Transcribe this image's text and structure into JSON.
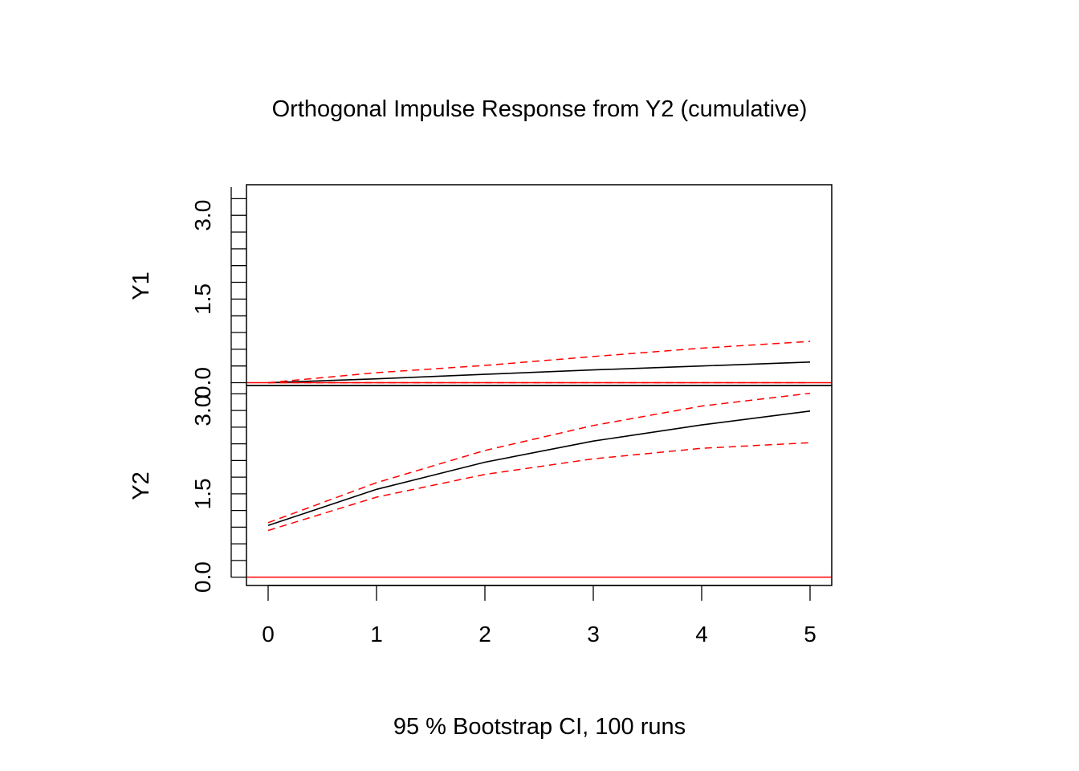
{
  "chart_data": {
    "type": "line",
    "title": "Orthogonal Impulse Response from Y2 (cumulative)",
    "xlabel": "95 % Bootstrap CI,  100 runs",
    "x": [
      0,
      1,
      2,
      3,
      4,
      5
    ],
    "xlim": [
      -0.2,
      5.2
    ],
    "x_tick_labels": [
      "0",
      "1",
      "2",
      "3",
      "4",
      "5"
    ],
    "colors": {
      "response": "#000000",
      "ci": "#ff0000",
      "zero_line": "#ff0000",
      "axes": "#000000"
    },
    "panels": [
      {
        "ylabel": "Y1",
        "ylim": [
          -0.05,
          3.55
        ],
        "y_tick_labels": [
          "0.0",
          "1.5",
          "3.0"
        ],
        "y_tick_values": [
          0.0,
          1.5,
          3.0
        ],
        "series": [
          {
            "role": "response",
            "values": [
              0.0,
              0.07,
              0.15,
              0.23,
              0.3,
              0.37
            ]
          },
          {
            "role": "ci_upper",
            "values": [
              0.0,
              0.18,
              0.31,
              0.47,
              0.62,
              0.74
            ]
          },
          {
            "role": "ci_lower",
            "values": [
              0.0,
              0.0,
              0.0,
              0.0,
              0.0,
              0.0
            ]
          }
        ]
      },
      {
        "ylabel": "Y2",
        "ylim": [
          -0.15,
          3.45
        ],
        "y_tick_labels": [
          "0.0",
          "1.5",
          "3.0"
        ],
        "y_tick_values": [
          0.0,
          1.5,
          3.0
        ],
        "series": [
          {
            "role": "response",
            "values": [
              0.93,
              1.58,
              2.07,
              2.45,
              2.74,
              2.99
            ]
          },
          {
            "role": "ci_upper",
            "values": [
              0.98,
              1.7,
              2.28,
              2.73,
              3.08,
              3.31
            ]
          },
          {
            "role": "ci_lower",
            "values": [
              0.84,
              1.44,
              1.85,
              2.13,
              2.32,
              2.42
            ]
          }
        ]
      }
    ]
  }
}
